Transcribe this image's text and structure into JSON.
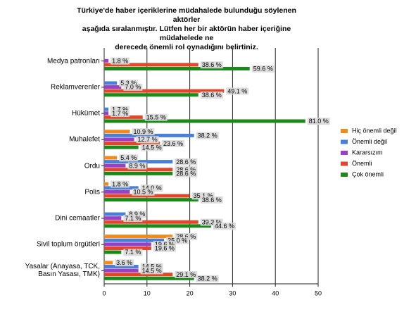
{
  "chart_data": {
    "type": "bar",
    "orientation": "horizontal",
    "title": "Türkiye'de haber içeriklerine müdahalede bulunduğu söylenen aktörler\naşağıda sıralanmıştır. Lütfen her bir aktörün haber içeriğine müdahelede ne\nderecede önemli rol oynadığını belirtiniz.",
    "categories": [
      "Medya patronları",
      "Reklamverenler",
      "Hükümet",
      "Muhalefet",
      "Ordu",
      "Polis",
      "Dini cemaatler",
      "Sivil toplum örgütleri",
      "Yasalar (Anayasa, TCK,\nBasın Yasası, TMK)"
    ],
    "series": [
      {
        "name": "Hiç önemli değil",
        "color": "#f08a1c",
        "values": [
          0,
          0,
          0,
          6,
          3,
          1,
          0,
          16,
          2
        ],
        "percent_labels": [
          null,
          null,
          null,
          "10.9 %",
          "5.4 %",
          "1.8 %",
          null,
          "28.6 %",
          "3.6 %"
        ]
      },
      {
        "name": "Önemli değil",
        "color": "#4a7fd6",
        "values": [
          0,
          3,
          1,
          21,
          16,
          8,
          5,
          14,
          8
        ],
        "percent_labels": [
          null,
          "5.3 %",
          "1.7 %",
          "38.2 %",
          "28.6 %",
          "14.0 %",
          "8.9 %",
          "25.0 %",
          "14.5 %"
        ]
      },
      {
        "name": "Kararsızım",
        "color": "#9b3fc8",
        "values": [
          1,
          4,
          1,
          7,
          5,
          6,
          4,
          11,
          8
        ],
        "percent_labels": [
          "1.8 %",
          "7.0 %",
          "1.7 %",
          "12.7 %",
          "8.9 %",
          "10.5 %",
          "7.1 %",
          "19.6 %",
          "14.5 %"
        ]
      },
      {
        "name": "Önemli",
        "color": "#e2452a",
        "values": [
          22,
          28,
          9,
          13,
          16,
          20,
          22,
          11,
          16
        ],
        "percent_labels": [
          "38.6 %",
          "49.1 %",
          "15.5 %",
          "23.6 %",
          "28.6 %",
          "35.1 %",
          "39.3 %",
          "19.6 %",
          "29.1 %"
        ]
      },
      {
        "name": "Çok önemli",
        "color": "#1a8a1a",
        "values": [
          34,
          22,
          47,
          8,
          16,
          22,
          25,
          4,
          21
        ],
        "percent_labels": [
          "59.6 %",
          "38.6 %",
          "81.0 %",
          "14.5 %",
          "28.6 %",
          "38.6 %",
          "44.6 %",
          "7.1 %",
          "38.2 %"
        ]
      }
    ],
    "xlim": [
      0,
      50
    ],
    "xticks": [
      0,
      10,
      20,
      30,
      40,
      50
    ],
    "grid": true,
    "legend": "right"
  }
}
